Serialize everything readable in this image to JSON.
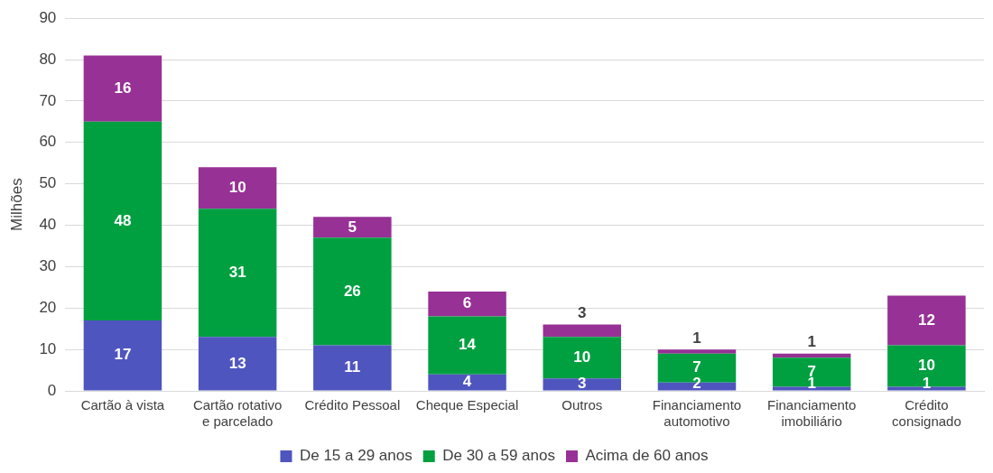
{
  "chart_data": {
    "type": "bar",
    "stacked": true,
    "ylabel": "Milhões",
    "categories": [
      "Cartão à vista",
      "Cartão rotativo e parcelado",
      "Crédito Pessoal",
      "Cheque Especial",
      "Outros",
      "Financiamento automotivo",
      "Financiamento imobiliário",
      "Crédito consignado"
    ],
    "series": [
      {
        "name": "De 15 a 29 anos",
        "color": "#4f55bf",
        "values": [
          17,
          13,
          11,
          4,
          3,
          2,
          1,
          1
        ]
      },
      {
        "name": "De 30 a 59 anos",
        "color": "#00a040",
        "values": [
          48,
          31,
          26,
          14,
          10,
          7,
          7,
          10
        ]
      },
      {
        "name": "Acima de 60 anos",
        "color": "#973196",
        "values": [
          16,
          10,
          5,
          6,
          3,
          1,
          1,
          12
        ]
      }
    ],
    "ylim": [
      0,
      90
    ],
    "yticks": [
      0,
      10,
      20,
      30,
      40,
      50,
      60,
      70,
      80,
      90
    ],
    "grid": "y",
    "legend": "bottom",
    "data_labels": true
  }
}
